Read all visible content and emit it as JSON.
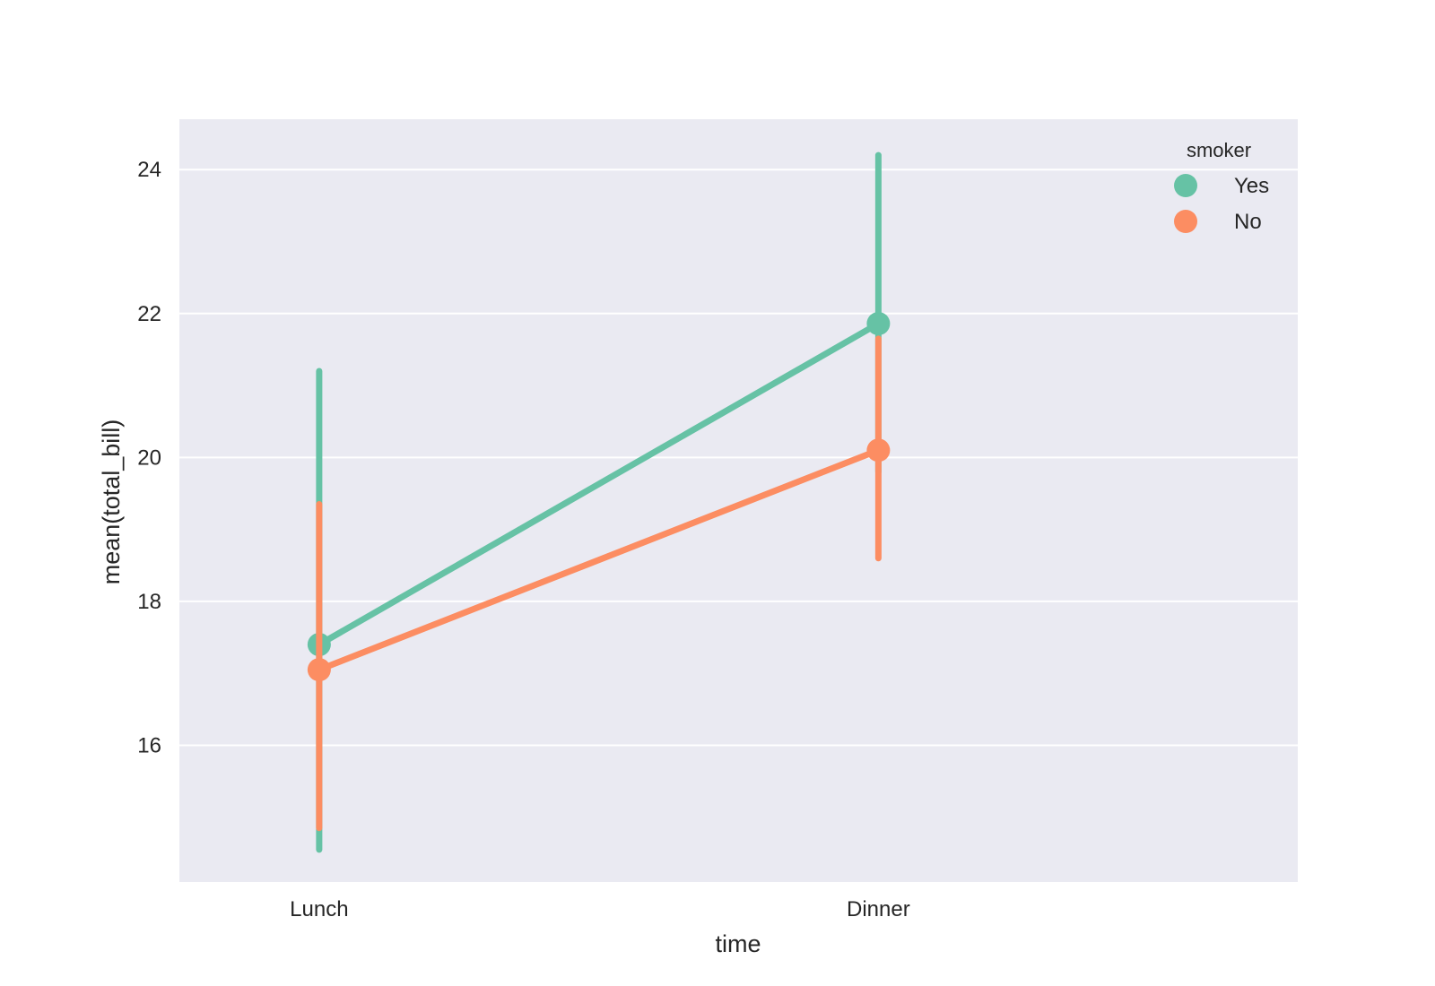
{
  "chart_data": {
    "type": "line",
    "subtype": "pointplot",
    "categories": [
      "Lunch",
      "Dinner"
    ],
    "xlabel": "time",
    "ylabel": "mean(total_bill)",
    "ylim": [
      14.1,
      24.7
    ],
    "yticks": [
      16,
      18,
      20,
      22,
      24
    ],
    "grid": true,
    "legend": {
      "title": "smoker",
      "position": "top-right",
      "entries": [
        "Yes",
        "No"
      ]
    },
    "series": [
      {
        "name": "Yes",
        "color": "#66c2a5",
        "values": [
          17.4,
          21.86
        ],
        "ci_low": [
          14.55,
          19.8
        ],
        "ci_high": [
          21.2,
          24.2
        ]
      },
      {
        "name": "No",
        "color": "#fc8d62",
        "values": [
          17.05,
          20.1
        ],
        "ci_low": [
          14.85,
          18.6
        ],
        "ci_high": [
          19.35,
          21.65
        ]
      }
    ]
  },
  "style": {
    "plot_background": "#eaeaf2",
    "grid_color": "#ffffff",
    "text_color": "#262626"
  }
}
